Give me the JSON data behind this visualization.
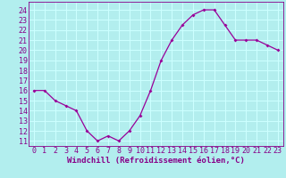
{
  "x": [
    0,
    1,
    2,
    3,
    4,
    5,
    6,
    7,
    8,
    9,
    10,
    11,
    12,
    13,
    14,
    15,
    16,
    17,
    18,
    19,
    20,
    21,
    22,
    23
  ],
  "y": [
    16,
    16,
    15,
    14.5,
    14,
    12,
    11,
    11.5,
    11,
    12,
    13.5,
    16,
    19,
    21,
    22.5,
    23.5,
    24,
    24,
    22.5,
    21,
    21,
    21,
    20.5,
    20
  ],
  "line_color": "#990099",
  "marker_color": "#990099",
  "bg_color": "#b2eeee",
  "grid_color": "#ccffff",
  "title": "",
  "xlabel": "Windchill (Refroidissement éolien,°C)",
  "xtick_labels": [
    "0",
    "1",
    "2",
    "3",
    "4",
    "5",
    "6",
    "7",
    "8",
    "9",
    "10",
    "11",
    "12",
    "13",
    "14",
    "15",
    "16",
    "17",
    "18",
    "19",
    "20",
    "21",
    "22",
    "23"
  ],
  "ytick_labels": [
    "11",
    "12",
    "13",
    "14",
    "15",
    "16",
    "17",
    "18",
    "19",
    "20",
    "21",
    "22",
    "23",
    "24"
  ],
  "ylim": [
    10.5,
    24.8
  ],
  "xlim": [
    -0.5,
    23.5
  ],
  "xlabel_color": "#880088",
  "axis_label_fontsize": 6.5,
  "tick_fontsize": 6.0
}
